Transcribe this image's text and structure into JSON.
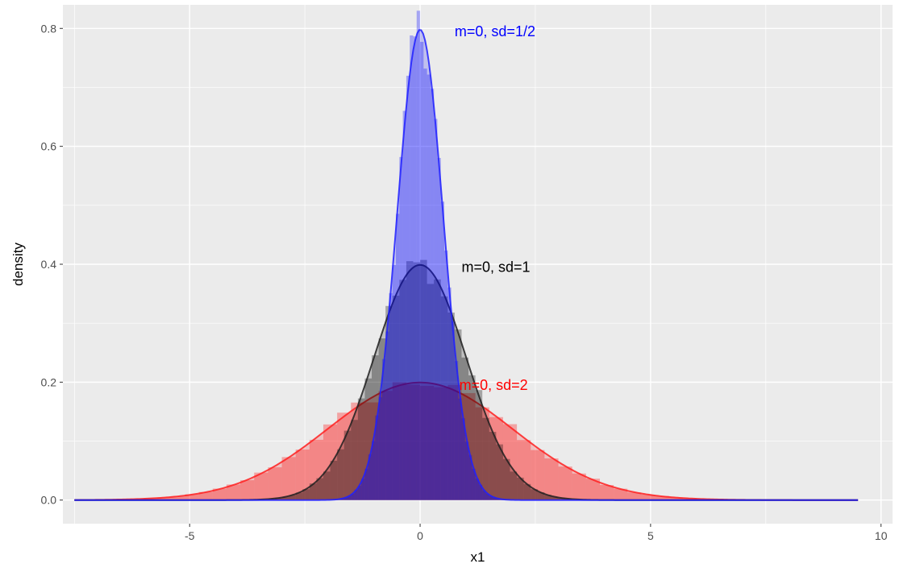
{
  "chart_data": {
    "type": "area",
    "title": "",
    "xlabel": "x1",
    "ylabel": "density",
    "xlim": [
      -7.75,
      10.25
    ],
    "ylim": [
      -0.04,
      0.84
    ],
    "x_ticks": [
      -5,
      0,
      5,
      10
    ],
    "x_tick_labels": [
      "-5",
      "0",
      "5",
      "10"
    ],
    "y_ticks": [
      0.0,
      0.2,
      0.4,
      0.6,
      0.8
    ],
    "y_tick_labels": [
      "0.0",
      "0.2",
      "0.4",
      "0.6",
      "0.8"
    ],
    "grid": true,
    "panel_background": "#ebebeb",
    "series": [
      {
        "label": "m=0, sd=2",
        "mean": 0,
        "sd": 2,
        "x_range": [
          -7.5,
          9.5
        ],
        "peak_density": 0.2,
        "line_color": "#ff2020",
        "fill_color": "#ff0000",
        "label_color": "#ff0000",
        "label_position": {
          "x": 0.85,
          "y": 0.195
        }
      },
      {
        "label": "m=0, sd=1",
        "mean": 0,
        "sd": 1,
        "x_range": [
          -7.5,
          9.5
        ],
        "peak_density": 0.4,
        "line_color": "#202020",
        "fill_color": "#000000",
        "label_color": "#000000",
        "label_position": {
          "x": 0.9,
          "y": 0.395
        }
      },
      {
        "label": "m=0, sd=1/2",
        "mean": 0,
        "sd": 0.5,
        "x_range": [
          -7.5,
          9.5
        ],
        "peak_density": 0.8,
        "line_color": "#2020ff",
        "fill_color": "#0000ff",
        "label_color": "#0000ff",
        "label_position": {
          "x": 0.75,
          "y": 0.795
        }
      }
    ]
  }
}
